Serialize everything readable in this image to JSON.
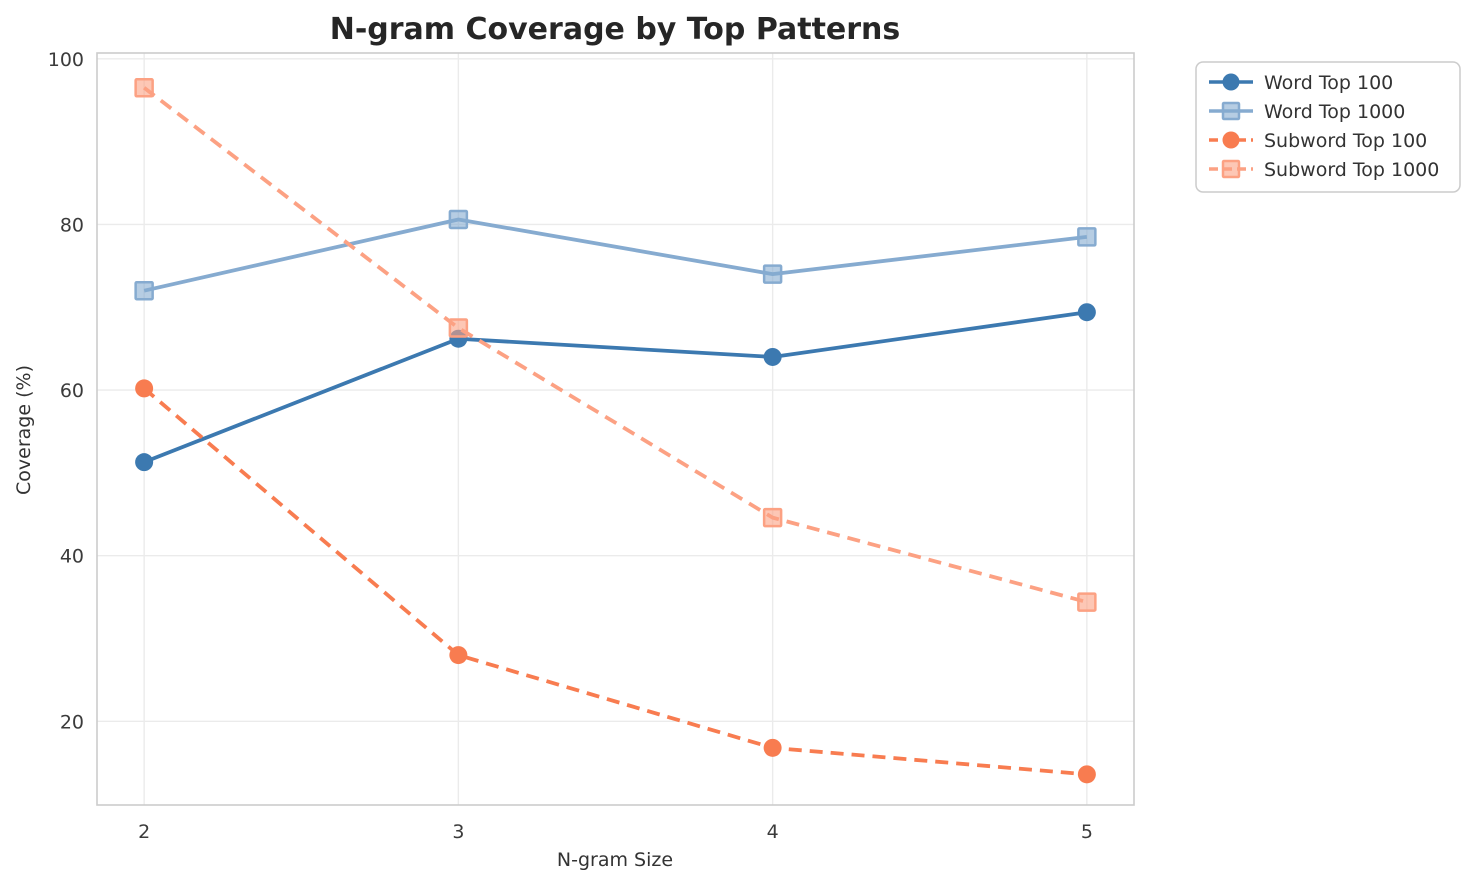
{
  "chart_data": {
    "type": "line",
    "title": "N-gram Coverage by Top Patterns",
    "xlabel": "N-gram Size",
    "ylabel": "Coverage (%)",
    "x": [
      2,
      3,
      4,
      5
    ],
    "xticks": [
      2,
      3,
      4,
      5
    ],
    "yticks": [
      20,
      40,
      60,
      80,
      100
    ],
    "xlim": [
      1.85,
      5.15
    ],
    "ylim": [
      9.9,
      100.7
    ],
    "grid": true,
    "legend_position": "outside-top-right",
    "series": [
      {
        "name": "Word Top 100",
        "values": [
          51.3,
          66.2,
          64.0,
          69.4
        ],
        "color": "#3c79b0",
        "marker": "circle",
        "line_style": "solid"
      },
      {
        "name": "Word Top 1000",
        "values": [
          72.0,
          80.6,
          74.0,
          78.5
        ],
        "color": "#86abd0",
        "marker": "square",
        "line_style": "solid"
      },
      {
        "name": "Subword Top 100",
        "values": [
          60.2,
          28.0,
          16.8,
          13.6
        ],
        "color": "#f87c50",
        "marker": "circle",
        "line_style": "dashed"
      },
      {
        "name": "Subword Top 1000",
        "values": [
          96.5,
          67.5,
          44.6,
          34.4
        ],
        "color": "#fca183",
        "marker": "square",
        "line_style": "dashed"
      }
    ],
    "colors": {
      "grid": "#ebebeb",
      "spine": "#cccccc",
      "title_text": "#262626",
      "tick_text": "#3b3b3b",
      "legend_border": "#cccccc",
      "legend_background": "#ffffff"
    }
  }
}
